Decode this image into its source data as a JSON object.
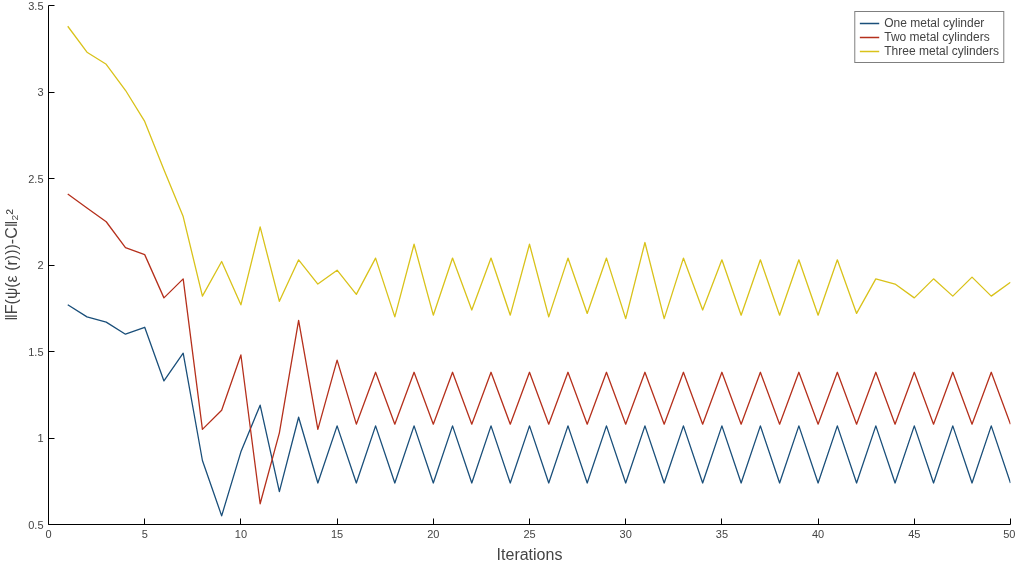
{
  "chart_data": {
    "type": "line",
    "xlabel": "Iterations",
    "ylabel": "‖F(ψ(ε (r)))-C‖₂²",
    "x": [
      1,
      2,
      3,
      4,
      5,
      6,
      7,
      8,
      9,
      10,
      11,
      12,
      13,
      14,
      15,
      16,
      17,
      18,
      19,
      20,
      21,
      22,
      23,
      24,
      25,
      26,
      27,
      28,
      29,
      30,
      31,
      32,
      33,
      34,
      35,
      36,
      37,
      38,
      39,
      40,
      41,
      42,
      43,
      44,
      45,
      46,
      47,
      48,
      49,
      50
    ],
    "series": [
      {
        "name": "One metal cylinder",
        "color": "#1a4f7a",
        "values": [
          1.77,
          1.7,
          1.67,
          1.6,
          1.64,
          1.33,
          1.49,
          0.87,
          0.55,
          0.92,
          1.19,
          0.69,
          1.12,
          0.74,
          1.07,
          0.74,
          1.07,
          0.74,
          1.07,
          0.74,
          1.07,
          0.74,
          1.07,
          0.74,
          1.07,
          0.74,
          1.07,
          0.74,
          1.07,
          0.74,
          1.07,
          0.74,
          1.07,
          0.74,
          1.07,
          0.74,
          1.07,
          0.74,
          1.07,
          0.74,
          1.07,
          0.74,
          1.07,
          0.74,
          1.07,
          0.74,
          1.07,
          0.74,
          1.07,
          0.74
        ]
      },
      {
        "name": "Two metal cylinders",
        "color": "#b5301c",
        "values": [
          2.41,
          2.33,
          2.25,
          2.1,
          2.06,
          1.81,
          1.92,
          1.05,
          1.16,
          1.48,
          0.62,
          1.03,
          1.68,
          1.05,
          1.45,
          1.08,
          1.38,
          1.08,
          1.38,
          1.08,
          1.38,
          1.08,
          1.38,
          1.08,
          1.38,
          1.08,
          1.38,
          1.08,
          1.38,
          1.08,
          1.38,
          1.08,
          1.38,
          1.08,
          1.38,
          1.08,
          1.38,
          1.08,
          1.38,
          1.08,
          1.38,
          1.08,
          1.38,
          1.08,
          1.38,
          1.08,
          1.38,
          1.08,
          1.38,
          1.08
        ]
      },
      {
        "name": "Three metal cylinders",
        "color": "#d9c21a",
        "values": [
          3.38,
          3.23,
          3.16,
          3.01,
          2.83,
          2.55,
          2.28,
          1.82,
          2.02,
          1.77,
          2.22,
          1.79,
          2.03,
          1.89,
          1.97,
          1.83,
          2.04,
          1.7,
          2.12,
          1.71,
          2.04,
          1.74,
          2.04,
          1.71,
          2.12,
          1.7,
          2.04,
          1.72,
          2.04,
          1.69,
          2.13,
          1.69,
          2.04,
          1.74,
          2.03,
          1.71,
          2.03,
          1.71,
          2.03,
          1.71,
          2.03,
          1.72,
          1.92,
          1.89,
          1.81,
          1.92,
          1.82,
          1.93,
          1.82,
          1.9
        ]
      }
    ],
    "xlim": [
      0,
      50
    ],
    "xticks": [
      0,
      5,
      10,
      15,
      20,
      25,
      30,
      35,
      40,
      45,
      50
    ],
    "ylim": [
      0.5,
      3.5
    ],
    "yticks": [
      0.5,
      1,
      1.5,
      2,
      2.5,
      3,
      3.5
    ],
    "legend": "top right",
    "grid": false,
    "marker": "none",
    "line_style": "solid"
  }
}
